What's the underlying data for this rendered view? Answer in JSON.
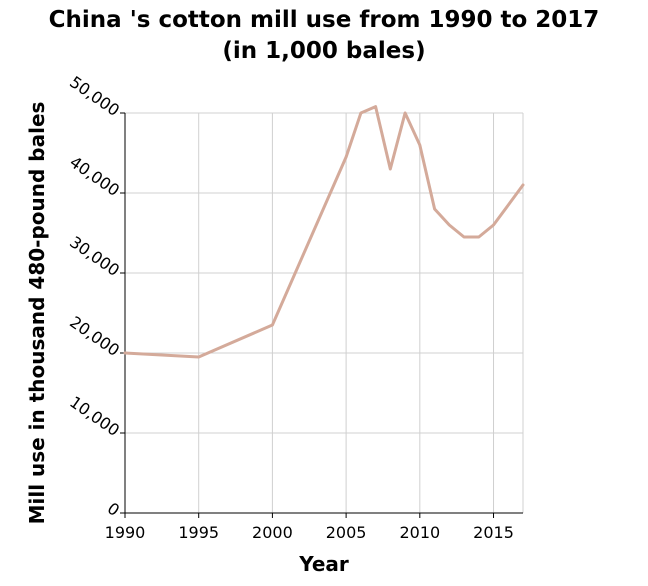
{
  "chart_data": {
    "type": "line",
    "title": "China 's cotton mill use from 1990 to 2017",
    "subtitle": "(in 1,000 bales)",
    "xlabel": "Year",
    "ylabel": "Mill use in thousand 480-pound bales",
    "xlim": [
      1990,
      2017
    ],
    "ylim": [
      0,
      50000
    ],
    "x_ticks": [
      1990,
      1995,
      2000,
      2005,
      2010,
      2015
    ],
    "x_tick_labels": [
      "1990",
      "1995",
      "2000",
      "2005",
      "2010",
      "2015"
    ],
    "y_ticks": [
      0,
      10000,
      20000,
      30000,
      40000,
      50000
    ],
    "y_tick_labels": [
      "0",
      "10,000",
      "20,000",
      "30,000",
      "40,000",
      "50,000"
    ],
    "grid": true,
    "line_color": "#d4aa9a",
    "series": [
      {
        "x": [
          1990,
          1995,
          2000,
          2005,
          2006,
          2007,
          2008,
          2009,
          2010,
          2011,
          2012,
          2013,
          2014,
          2015,
          2016,
          2017
        ],
        "y": [
          20000,
          19500,
          23500,
          44500,
          50000,
          50800,
          43000,
          50000,
          46000,
          38000,
          36000,
          34500,
          34500,
          36000,
          38500,
          41000
        ]
      }
    ]
  }
}
